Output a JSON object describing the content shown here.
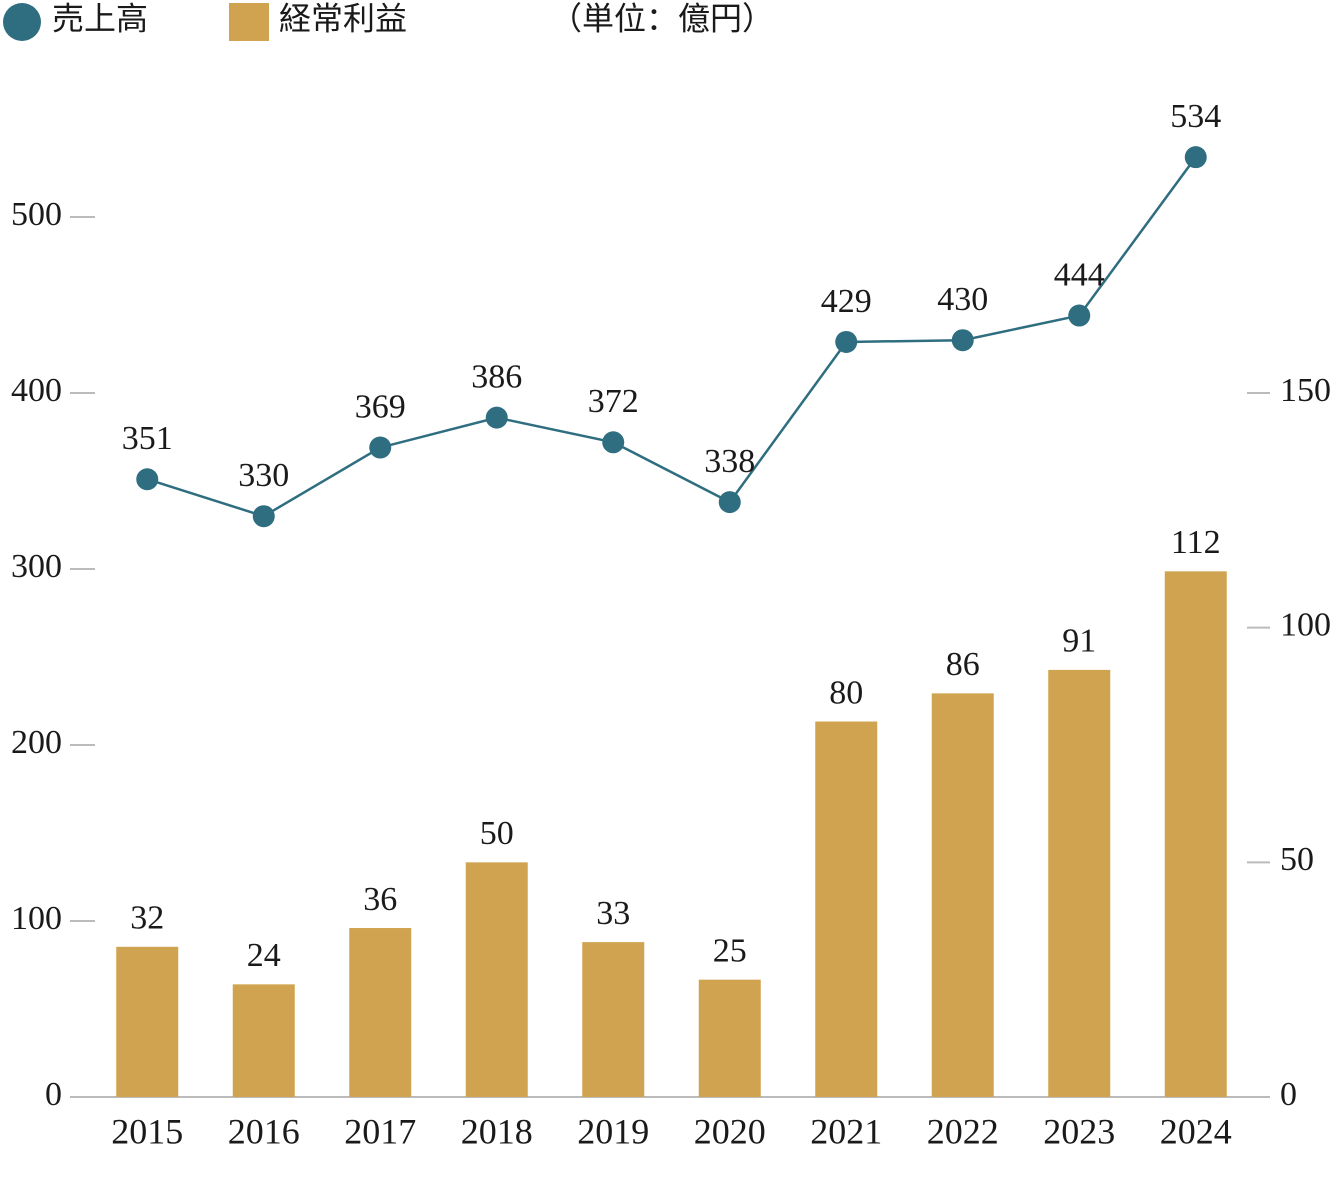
{
  "chart_data": {
    "type": "bar-line",
    "subtitle": "（単位：億円）",
    "categories": [
      "2015",
      "2016",
      "2017",
      "2018",
      "2019",
      "2020",
      "2021",
      "2022",
      "2023",
      "2024"
    ],
    "series": [
      {
        "name": "売上高",
        "type": "line",
        "color": "#2f6e80",
        "axis": "y",
        "values": [
          351,
          330,
          369,
          386,
          372,
          338,
          429,
          430,
          444,
          534
        ]
      },
      {
        "name": "経常利益",
        "type": "bar",
        "color": "#cfa34f",
        "axis": "y2",
        "values": [
          32,
          24,
          36,
          50,
          33,
          25,
          80,
          86,
          91,
          112
        ]
      }
    ],
    "ylim": [
      0,
      600
    ],
    "yticks": [
      0,
      100,
      200,
      300,
      400,
      500
    ],
    "y2lim": [
      0,
      225
    ],
    "y2ticks": [
      0,
      50,
      100,
      150
    ],
    "legend": "top-left"
  }
}
